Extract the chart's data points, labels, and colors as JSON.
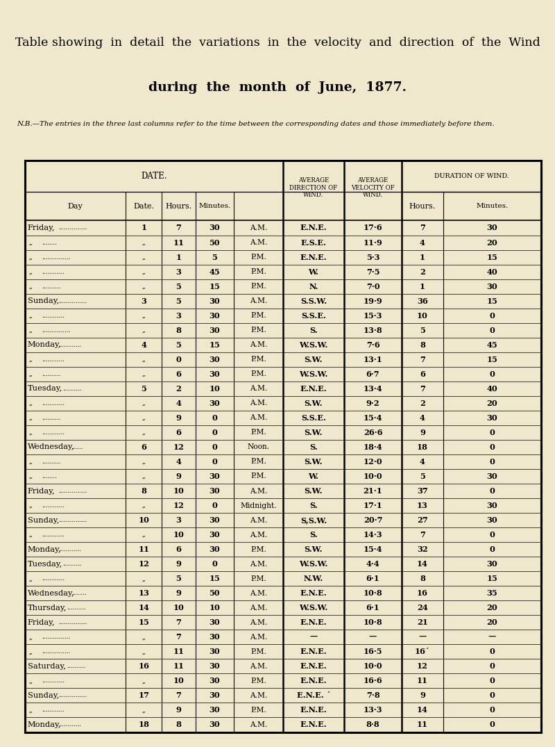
{
  "title_line1": "Table showing  in  detail  the  variations  in  the  velocity  and  direction  of  the  Wind",
  "title_line2": "during  the  month  of  June,  1877.",
  "note": "N.B.—The entries in the three last columns refer to the time between the corresponding dates and those immediately before them.",
  "bg_color": "#f0e8cc",
  "rows": [
    [
      "Friday,",
      "1",
      "7",
      "30",
      "A.M.",
      "E.N.E.",
      "17·6",
      "7",
      "30"
    ],
    [
      ",,",
      ",,",
      "11",
      "50",
      "A.M.",
      "E.S.E.",
      "11·9",
      "4",
      "20"
    ],
    [
      ",,",
      ",,",
      "1",
      "5",
      "P.M.",
      "E.N.E.",
      "5·3",
      "1",
      "15"
    ],
    [
      ",,",
      ",,",
      "3",
      "45",
      "P.M.",
      "W.",
      "7·5",
      "2",
      "40"
    ],
    [
      ",,",
      ",,",
      "5",
      "15",
      "P.M.",
      "N.",
      "7·0",
      "1",
      "30"
    ],
    [
      "Sunday,",
      "3",
      "5",
      "30",
      "A.M.",
      "S.S.W.",
      "19·9",
      "36",
      "15"
    ],
    [
      ",,",
      ",,",
      "3",
      "30",
      "P.M.",
      "S.S.E.",
      "15·3",
      "10",
      "0"
    ],
    [
      ",,",
      ",,",
      "8",
      "30",
      "P.M.",
      "S.",
      "13·8",
      "5",
      "0"
    ],
    [
      "Monday,",
      "4",
      "5",
      "15",
      "A.M.",
      "W.S.W.",
      "7·6",
      "8",
      "45"
    ],
    [
      ",,",
      ",,",
      "0",
      "30",
      "P.M.",
      "S.W.",
      "13·1",
      "7",
      "15"
    ],
    [
      ",,",
      ",,",
      "6",
      "30",
      "P.M.",
      "W.S.W.",
      "6·7",
      "6",
      "0"
    ],
    [
      "Tuesday,",
      "5",
      "2",
      "10",
      "A.M.",
      "E.N.E.",
      "13·4",
      "7",
      "40"
    ],
    [
      ",,",
      ",,",
      "4",
      "30",
      "A.M.",
      "S.W.",
      "9·2",
      "2",
      "20"
    ],
    [
      ",,",
      ",,",
      "9",
      "0",
      "A.M.",
      "S.S.E.",
      "15·4",
      "4",
      "30"
    ],
    [
      ",,",
      ",,",
      "6",
      "0",
      "P.M.",
      "S.W.",
      "26·6",
      "9",
      "0"
    ],
    [
      "Wednesday,",
      "6",
      "12",
      "0",
      "Noon.",
      "S.",
      "18·4",
      "18",
      "0"
    ],
    [
      ",,",
      ",,",
      "4",
      "0",
      "P.M.",
      "S.W.",
      "12·0",
      "4",
      "0"
    ],
    [
      ",,",
      ",,",
      "9",
      "30",
      "P.M.",
      "W.",
      "10·0",
      "5",
      "30"
    ],
    [
      "Friday,",
      "8",
      "10",
      "30",
      "A.M.",
      "S.W.",
      "21·1",
      "37",
      "0"
    ],
    [
      ",,",
      ",,",
      "12",
      "0",
      "Midnight.",
      "S.",
      "17·1",
      "13",
      "30"
    ],
    [
      "Sunday,",
      "10",
      "3",
      "30",
      "A.M.",
      "S,S.W.",
      "20·7",
      "27",
      "30"
    ],
    [
      ",,",
      ",,",
      "10",
      "30",
      "A.M.",
      "S.",
      "14·3",
      "7",
      "0"
    ],
    [
      "Monday,",
      "11",
      "6",
      "30",
      "P.M.",
      "S.W.",
      "15·4",
      "32",
      "0"
    ],
    [
      "Tuesday,",
      "12",
      "9",
      "0",
      "A.M.",
      "W.S.W.",
      "4·4",
      "14",
      "30"
    ],
    [
      ",,",
      ",,",
      "5",
      "15",
      "P.M.",
      "N.W.",
      "6·1",
      "8",
      "15"
    ],
    [
      "Wednesday,",
      "13",
      "9",
      "50",
      "A.M.",
      "E.N.E.",
      "10·8",
      "16",
      "35"
    ],
    [
      "Thursday,",
      "14",
      "10",
      "10",
      "A.M.",
      "W.S.W.",
      "6·1",
      "24",
      "20"
    ],
    [
      "Friday,",
      "15",
      "7",
      "30",
      "A.M.",
      "E.N.E.",
      "10·8",
      "21",
      "20"
    ],
    [
      ",,",
      ",,",
      "7",
      "30",
      "A.M.",
      "—",
      "—",
      "—",
      "—"
    ],
    [
      ",,",
      ",,",
      "11",
      "30",
      "P.M.",
      "E.N.E.",
      "16·5",
      "16´",
      "0"
    ],
    [
      "Saturday,",
      "16",
      "11",
      "30",
      "A.M.",
      "E.N.E.",
      "10·0",
      "12",
      "0"
    ],
    [
      ",,",
      ",,",
      "10",
      "30",
      "P.M.",
      "E.N.E.",
      "16·6",
      "11",
      "0"
    ],
    [
      "Sunday,",
      "17",
      "7",
      "30",
      "A.M.",
      "E.N.E. ´",
      "7·8",
      "9",
      "0"
    ],
    [
      ",,",
      ",,",
      "9",
      "30",
      "P.M.",
      "E.N.E.",
      "13·3",
      "14",
      "0"
    ],
    [
      "Monday,",
      "18",
      "8",
      "30",
      "A.M.",
      "E.N.E.",
      "8·8",
      "11",
      "0"
    ]
  ],
  "dots": [
    [
      true,
      "..............."
    ],
    [
      true,
      "........"
    ],
    [
      true,
      "..............."
    ],
    [
      true,
      "............"
    ],
    [
      true,
      ".........."
    ],
    [
      true,
      "..............."
    ],
    [
      true,
      "............"
    ],
    [
      true,
      "..............."
    ],
    [
      true,
      "............"
    ],
    [
      true,
      "............"
    ],
    [
      true,
      ".........."
    ],
    [
      true,
      ".........."
    ],
    [
      true,
      "............"
    ],
    [
      true,
      ".........."
    ],
    [
      true,
      "............"
    ],
    [
      true,
      "......"
    ],
    [
      true,
      ".........."
    ],
    [
      true,
      "........"
    ],
    [
      true,
      "..............."
    ],
    [
      true,
      "............"
    ],
    [
      true,
      "..............."
    ],
    [
      true,
      "............"
    ],
    [
      true,
      "............"
    ],
    [
      true,
      ".........."
    ],
    [
      true,
      "............"
    ],
    [
      true,
      "........"
    ],
    [
      true,
      ".........."
    ],
    [
      true,
      "..............."
    ],
    [
      true,
      "..............."
    ],
    [
      true,
      "..............."
    ],
    [
      true,
      ".........."
    ],
    [
      true,
      "............"
    ],
    [
      true,
      "..............."
    ],
    [
      true,
      "............"
    ],
    [
      true,
      "............"
    ]
  ]
}
